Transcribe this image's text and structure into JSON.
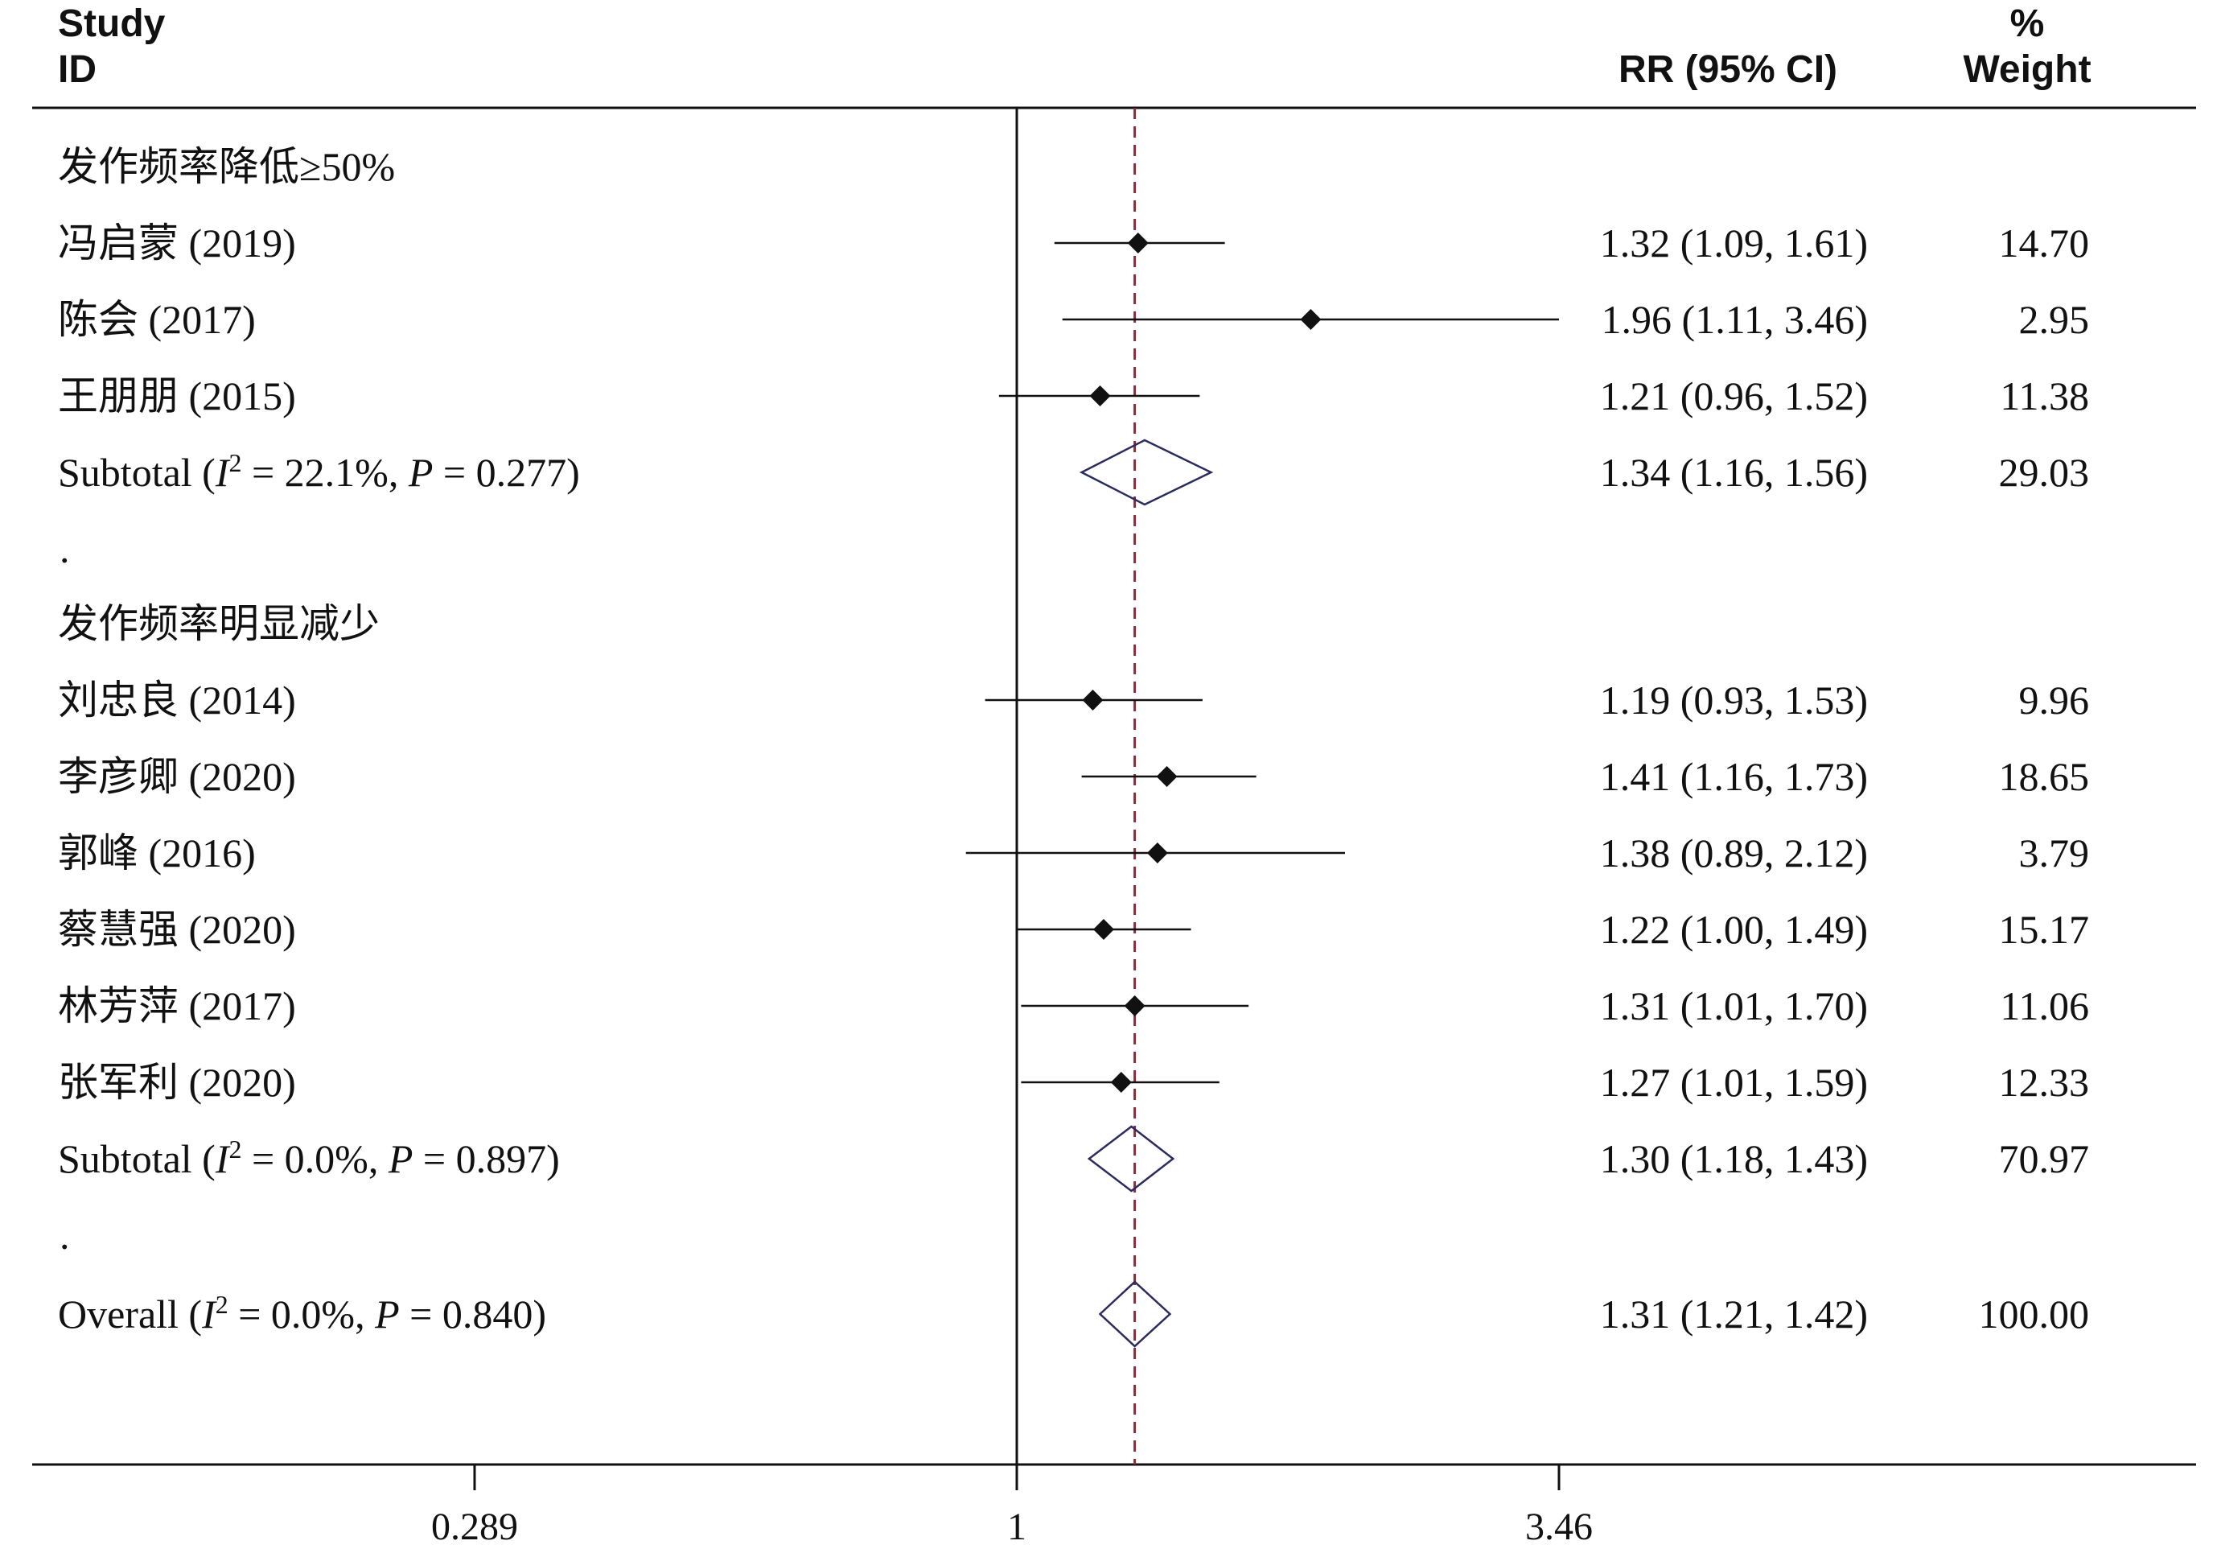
{
  "header": {
    "study_line1": "Study",
    "study_line2": "ID",
    "rr_label": "RR (95% CI)",
    "weight_line1": "%",
    "weight_line2": "Weight"
  },
  "chart_data": {
    "type": "forest",
    "effect_measure": "RR",
    "x_scale": "log",
    "xticks": [
      0.289,
      1,
      3.46
    ],
    "xtick_labels": [
      "0.289",
      "1",
      "3.46"
    ],
    "overall_effect_line": 1.31,
    "groups": [
      {
        "title": "发作频率降低≥50%",
        "studies": [
          {
            "label": "冯启蒙 (2019)",
            "rr": 1.32,
            "lo": 1.09,
            "hi": 1.61,
            "ci_text": "1.32 (1.09, 1.61)",
            "weight": "14.70"
          },
          {
            "label": "陈会 (2017)",
            "rr": 1.96,
            "lo": 1.11,
            "hi": 3.46,
            "ci_text": "1.96 (1.11, 3.46)",
            "weight": "2.95"
          },
          {
            "label": "王朋朋 (2015)",
            "rr": 1.21,
            "lo": 0.96,
            "hi": 1.52,
            "ci_text": "1.21 (0.96, 1.52)",
            "weight": "11.38"
          }
        ],
        "subtotal": {
          "label_prefix": "Subtotal  (",
          "i2_symbol": "I",
          "i2_sup": "2",
          "i2_value": " = 22.1%, ",
          "p_symbol": "P",
          "p_value": " = 0.277)",
          "rr": 1.34,
          "lo": 1.16,
          "hi": 1.56,
          "ci_text": "1.34 (1.16, 1.56)",
          "weight": "29.03"
        },
        "separator": "."
      },
      {
        "title": "发作频率明显减少",
        "studies": [
          {
            "label": "刘忠良 (2014)",
            "rr": 1.19,
            "lo": 0.93,
            "hi": 1.53,
            "ci_text": "1.19 (0.93, 1.53)",
            "weight": "9.96"
          },
          {
            "label": "李彦卿 (2020)",
            "rr": 1.41,
            "lo": 1.16,
            "hi": 1.73,
            "ci_text": "1.41 (1.16, 1.73)",
            "weight": "18.65"
          },
          {
            "label": "郭峰 (2016)",
            "rr": 1.38,
            "lo": 0.89,
            "hi": 2.12,
            "ci_text": "1.38 (0.89, 2.12)",
            "weight": "3.79"
          },
          {
            "label": "蔡慧强 (2020)",
            "rr": 1.22,
            "lo": 1.0,
            "hi": 1.49,
            "ci_text": "1.22 (1.00, 1.49)",
            "weight": "15.17"
          },
          {
            "label": "林芳萍 (2017)",
            "rr": 1.31,
            "lo": 1.01,
            "hi": 1.7,
            "ci_text": "1.31 (1.01, 1.70)",
            "weight": "11.06"
          },
          {
            "label": "张军利 (2020)",
            "rr": 1.27,
            "lo": 1.01,
            "hi": 1.59,
            "ci_text": "1.27 (1.01, 1.59)",
            "weight": "12.33"
          }
        ],
        "subtotal": {
          "label_prefix": "Subtotal  (",
          "i2_symbol": "I",
          "i2_sup": "2",
          "i2_value": " = 0.0%, ",
          "p_symbol": "P",
          "p_value": " = 0.897)",
          "rr": 1.3,
          "lo": 1.18,
          "hi": 1.43,
          "ci_text": "1.30 (1.18, 1.43)",
          "weight": "70.97"
        },
        "separator": "."
      }
    ],
    "overall": {
      "label_prefix": "Overall  (",
      "i2_symbol": "I",
      "i2_sup": "2",
      "i2_value": " = 0.0%, ",
      "p_symbol": "P",
      "p_value": " = 0.840)",
      "rr": 1.31,
      "lo": 1.21,
      "hi": 1.42,
      "ci_text": "1.31 (1.21, 1.42)",
      "weight": "100.00"
    },
    "colors": {
      "axis": "#111111",
      "marker": "#111111",
      "diamond": "#2b2b5e",
      "ref_line": "#8b2a3a"
    }
  }
}
